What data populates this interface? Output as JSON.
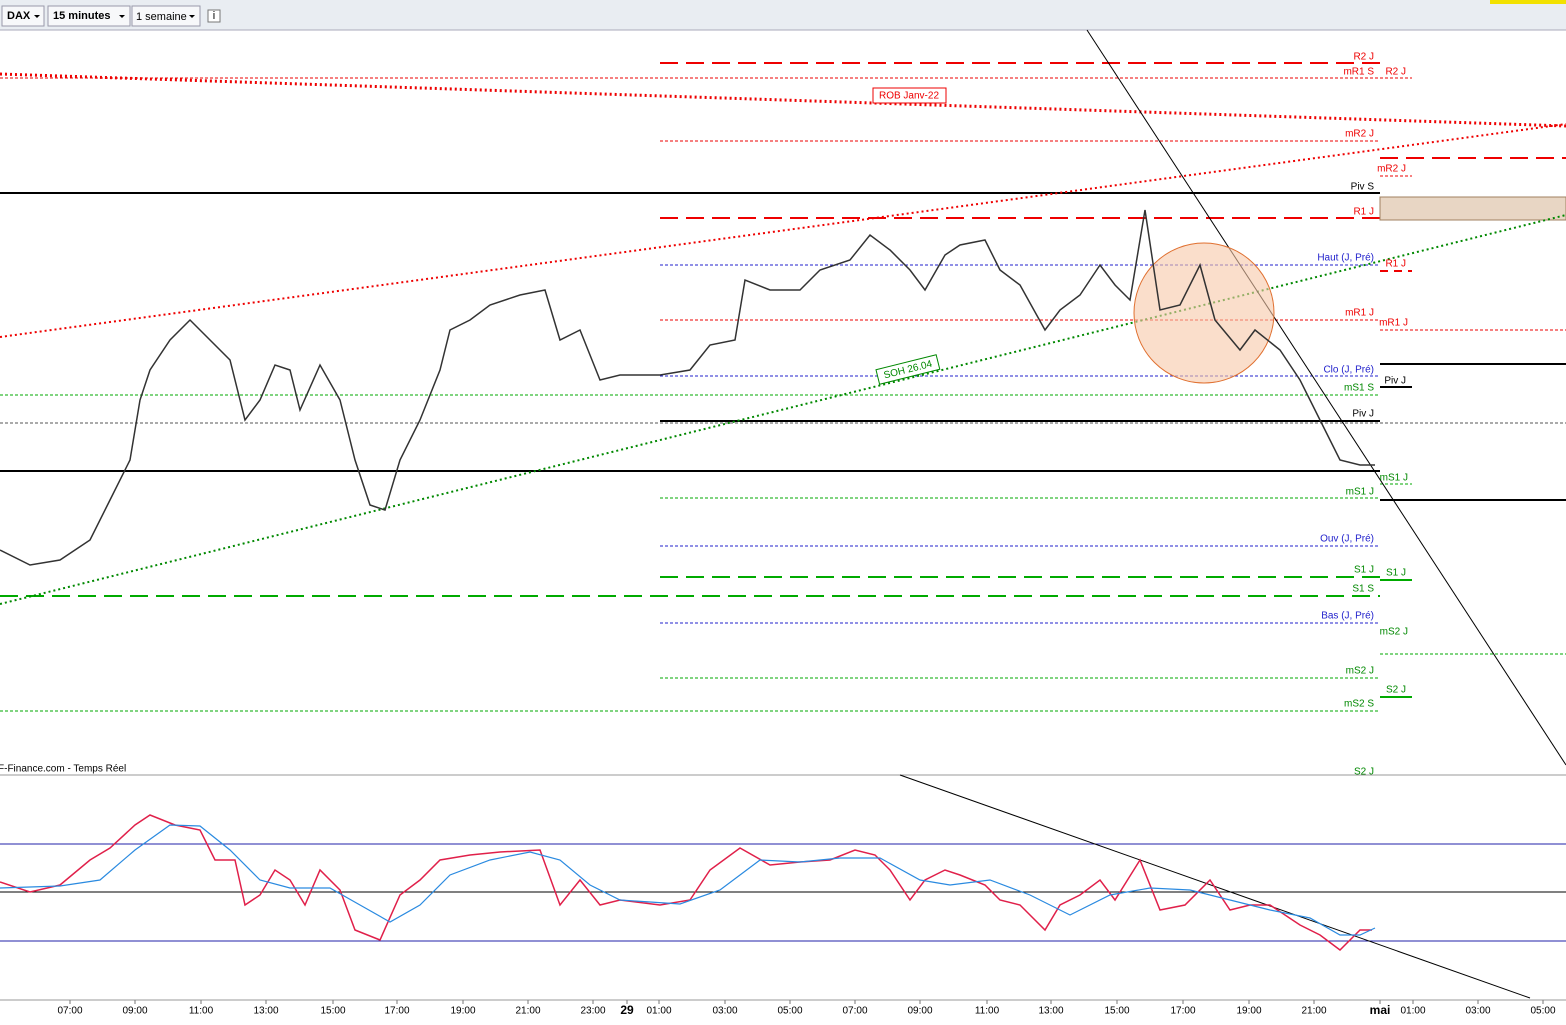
{
  "toolbar": {
    "instrument": "DAX",
    "interval": "15 minutes",
    "period": "1 semaine",
    "info": "i"
  },
  "source": "F-Finance.com - Temps Réel",
  "annotations": [
    "ROB Janv-22",
    "SOH 26.04"
  ],
  "levels": [
    "R2 J",
    "mR1 S",
    "R2 J",
    "mR2 J",
    "mR2 J",
    "Piv S",
    "R1 J",
    "Haut (J, Pré)",
    "R1 J",
    "mR1 J",
    "mR1 J",
    "Clo (J, Pré)",
    "mS1 S",
    "Piv J",
    "Piv J",
    "mS1 J",
    "mS1 J",
    "Ouv (J, Pré)",
    "S1 J",
    "S1 J",
    "S1 S",
    "Bas (J, Pré)",
    "mS2 J",
    "mS2 J",
    "S2 J",
    "mS2 S",
    "S2 J"
  ],
  "time_axis": [
    "07:00",
    "09:00",
    "11:00",
    "13:00",
    "15:00",
    "17:00",
    "19:00",
    "21:00",
    "23:00",
    "29",
    "01:00",
    "03:00",
    "05:00",
    "07:00",
    "09:00",
    "11:00",
    "13:00",
    "15:00",
    "17:00",
    "19:00",
    "21:00",
    "mai",
    "01:00",
    "03:00",
    "05:00"
  ]
}
